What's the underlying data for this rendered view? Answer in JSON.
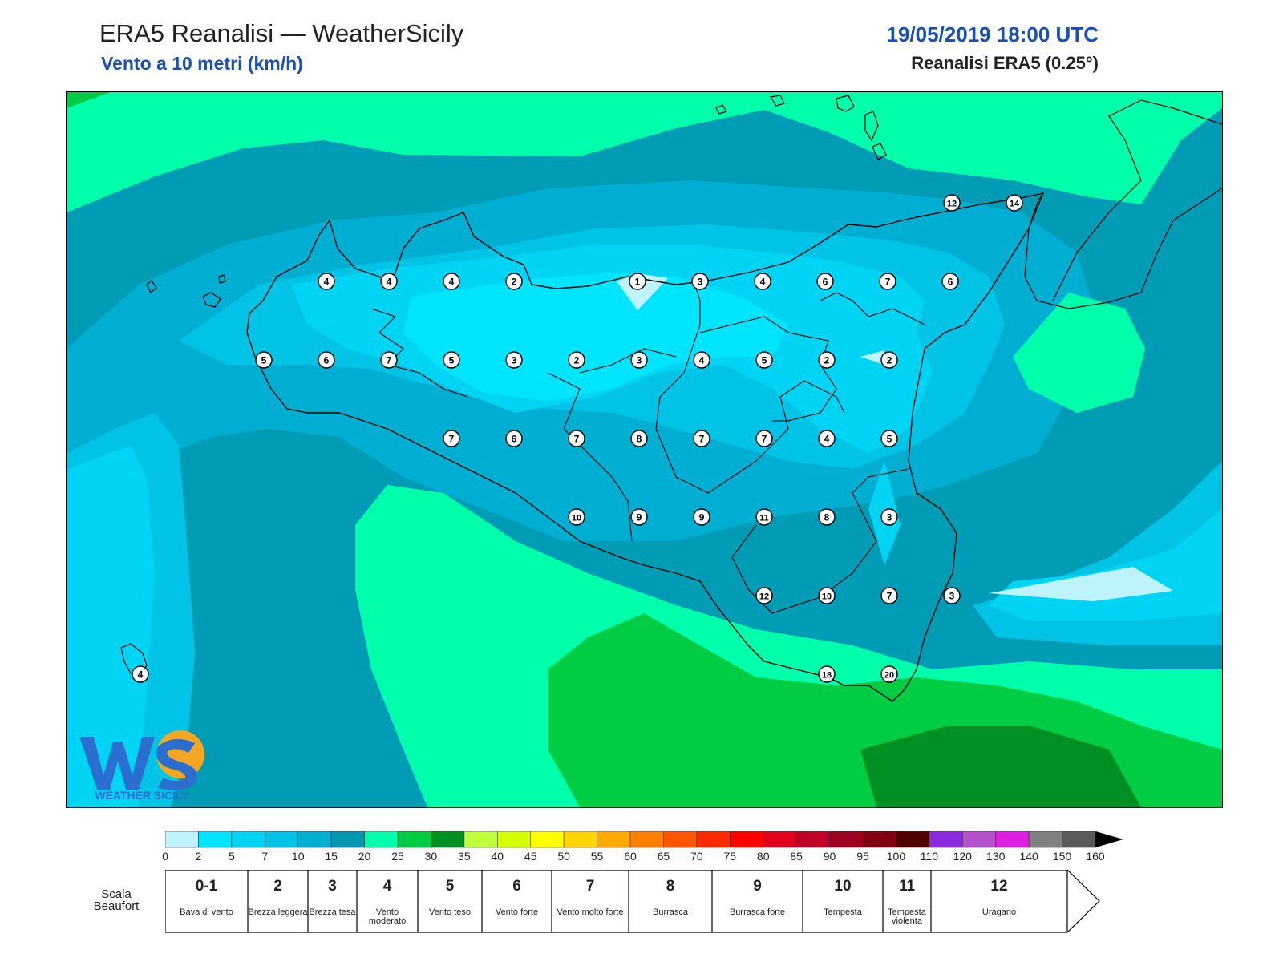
{
  "header": {
    "title": "ERA5 Reanalisi — WeatherSicily",
    "subtitle": "Vento a 10 metri (km/h)",
    "datetime": "19/05/2019 18:00 UTC",
    "source": "Reanalisi ERA5 (0.25°)"
  },
  "map": {
    "stations": [
      {
        "value": "4"
      },
      {
        "value": "4"
      },
      {
        "value": "4"
      },
      {
        "value": "2"
      },
      {
        "value": "1"
      },
      {
        "value": "3"
      },
      {
        "value": "4"
      },
      {
        "value": "6"
      },
      {
        "value": "7"
      },
      {
        "value": "6"
      },
      {
        "value": "5"
      },
      {
        "value": "6"
      },
      {
        "value": "7"
      },
      {
        "value": "5"
      },
      {
        "value": "3"
      },
      {
        "value": "2"
      },
      {
        "value": "3"
      },
      {
        "value": "4"
      },
      {
        "value": "5"
      },
      {
        "value": "2"
      },
      {
        "value": "2"
      },
      {
        "value": "7"
      },
      {
        "value": "6"
      },
      {
        "value": "7"
      },
      {
        "value": "8"
      },
      {
        "value": "7"
      },
      {
        "value": "7"
      },
      {
        "value": "4"
      },
      {
        "value": "5"
      },
      {
        "value": "10"
      },
      {
        "value": "9"
      },
      {
        "value": "9"
      },
      {
        "value": "11"
      },
      {
        "value": "8"
      },
      {
        "value": "3"
      },
      {
        "value": "12"
      },
      {
        "value": "10"
      },
      {
        "value": "7"
      },
      {
        "value": "3"
      },
      {
        "value": "18"
      },
      {
        "value": "20"
      },
      {
        "value": "12"
      },
      {
        "value": "14"
      },
      {
        "value": "4"
      }
    ],
    "logo": {
      "text": "WEATHER SICILY"
    }
  },
  "colorbar": {
    "ticks": [
      "0",
      "2",
      "5",
      "7",
      "10",
      "15",
      "20",
      "25",
      "30",
      "35",
      "40",
      "45",
      "50",
      "55",
      "60",
      "65",
      "70",
      "75",
      "80",
      "85",
      "90",
      "95",
      "100",
      "110",
      "120",
      "130",
      "140",
      "150",
      "160"
    ],
    "colors": [
      "#bff3fb",
      "#00e5ff",
      "#00d4f5",
      "#00c3e6",
      "#00aed2",
      "#0097b0",
      "#00ffaa",
      "#00cc44",
      "#008f22",
      "#bfff3c",
      "#d4ff00",
      "#ffff00",
      "#ffd500",
      "#ffaa00",
      "#ff7f00",
      "#ff5500",
      "#ff2a00",
      "#ff0000",
      "#e0001c",
      "#c00028",
      "#a00020",
      "#800010",
      "#500000",
      "#8a2be2",
      "#b452cd",
      "#e020e0",
      "#808080",
      "#5a5a5a",
      "#000000",
      "#8b4513",
      "#cd853f"
    ]
  },
  "beaufort": {
    "title": "Scala Beaufort",
    "levels": [
      {
        "num": "0-1",
        "desc": "Bava di vento"
      },
      {
        "num": "2",
        "desc": "Brezza leggera"
      },
      {
        "num": "3",
        "desc": "Brezza tesa"
      },
      {
        "num": "4",
        "desc": "Vento moderato"
      },
      {
        "num": "5",
        "desc": "Vento teso"
      },
      {
        "num": "6",
        "desc": "Vento forte"
      },
      {
        "num": "7",
        "desc": "Vento molto forte"
      },
      {
        "num": "8",
        "desc": "Burrasca"
      },
      {
        "num": "9",
        "desc": "Burrasca forte"
      },
      {
        "num": "10",
        "desc": "Tempesta"
      },
      {
        "num": "11",
        "desc": "Tempesta violenta"
      },
      {
        "num": "12",
        "desc": "Uragano"
      }
    ]
  }
}
